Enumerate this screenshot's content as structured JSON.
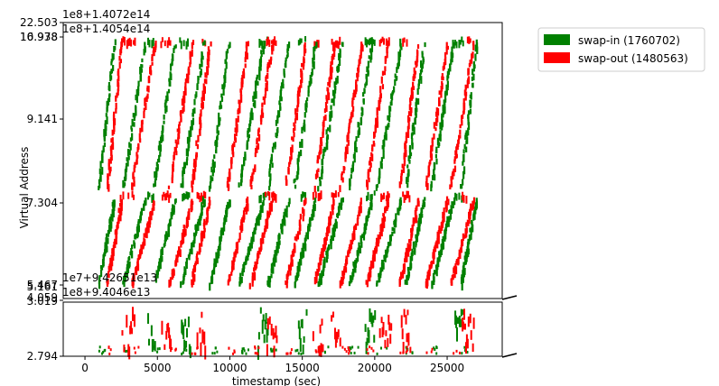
{
  "chart_data": {
    "type": "scatter",
    "xlabel": "timestamp (sec)",
    "ylabel": "Virtual Address",
    "x_ticks": [
      0,
      5000,
      10000,
      15000,
      20000,
      25000
    ],
    "x_tick_labels": [
      "0",
      "5000",
      "10000",
      "15000",
      "20000",
      "25000"
    ],
    "xlim": [
      -1500,
      28800
    ],
    "upper_panel": {
      "y_tick_labels": [
        "22.503",
        "16.978",
        "10.938",
        "9.141",
        "7.304",
        "5.467",
        "5.161"
      ],
      "y_ticks": [
        22.503,
        16.978,
        10.938,
        9.141,
        7.304,
        5.467,
        5.161
      ],
      "offset_texts": [
        "1e8+1.4072e14",
        "1e8+1.4054e14",
        "1e7+9.42651e13"
      ]
    },
    "lower_panel": {
      "y_tick_labels": [
        "4.059",
        "3.019",
        "2.794"
      ],
      "y_ticks": [
        4.059,
        3.019,
        2.794
      ],
      "offset_texts": [
        "1e8+9.4046e13"
      ]
    },
    "legend": {
      "placement": "outside-top-right"
    },
    "series": [
      {
        "name": "swap-in (1760702)",
        "color": "#008000",
        "diagonal_runs": [
          [
            900,
            2000
          ],
          [
            2600,
            4100
          ],
          [
            4700,
            6200
          ],
          [
            6600,
            8200
          ],
          [
            8600,
            9900
          ],
          [
            10600,
            12300
          ],
          [
            12600,
            14000
          ],
          [
            14400,
            15900
          ],
          [
            16100,
            17700
          ],
          [
            18200,
            19800
          ],
          [
            20100,
            21800
          ],
          [
            22100,
            23400
          ],
          [
            23900,
            25400
          ],
          [
            25900,
            27000
          ]
        ],
        "band_segments": [
          [
            4300,
            4800
          ],
          [
            6500,
            7300
          ],
          [
            11900,
            12600
          ],
          [
            14700,
            15300
          ],
          [
            19300,
            20000
          ],
          [
            25500,
            26100
          ]
        ]
      },
      {
        "name": "swap-out (1480563)",
        "color": "#ff0000",
        "diagonal_runs": [
          [
            1500,
            2500
          ],
          [
            3200,
            4800
          ],
          [
            5800,
            7400
          ],
          [
            7300,
            8600
          ],
          [
            9800,
            11200
          ],
          [
            11400,
            12900
          ],
          [
            13800,
            15200
          ],
          [
            15800,
            17200
          ],
          [
            17600,
            19100
          ],
          [
            19400,
            20900
          ],
          [
            21700,
            23000
          ],
          [
            23500,
            25000
          ],
          [
            25200,
            26800
          ]
        ],
        "band_segments": [
          [
            2400,
            3400
          ],
          [
            5200,
            5900
          ],
          [
            7700,
            8400
          ],
          [
            12400,
            13200
          ],
          [
            15700,
            16400
          ],
          [
            16900,
            17600
          ],
          [
            20300,
            21100
          ],
          [
            21800,
            22500
          ],
          [
            26000,
            26800
          ]
        ]
      }
    ]
  }
}
